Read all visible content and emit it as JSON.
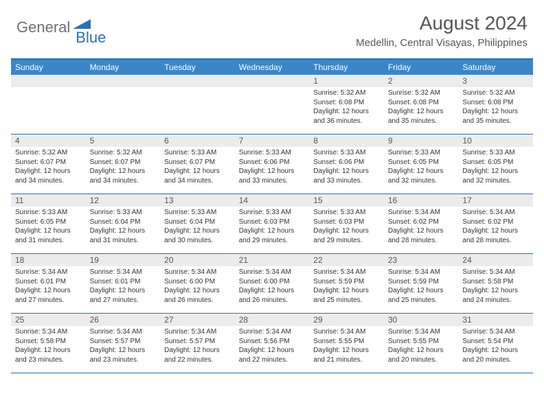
{
  "logo": {
    "text1": "General",
    "text2": "Blue"
  },
  "title": "August 2024",
  "location": "Medellin, Central Visayas, Philippines",
  "colors": {
    "header_bar": "#3b86c8",
    "border": "#2b6fb5",
    "daynum_bg": "#ececec",
    "text_gray": "#555555"
  },
  "weekdays": [
    "Sunday",
    "Monday",
    "Tuesday",
    "Wednesday",
    "Thursday",
    "Friday",
    "Saturday"
  ],
  "weeks": [
    [
      null,
      null,
      null,
      null,
      {
        "n": "1",
        "sr": "5:32 AM",
        "ss": "6:08 PM",
        "dl": "12 hours and 36 minutes."
      },
      {
        "n": "2",
        "sr": "5:32 AM",
        "ss": "6:08 PM",
        "dl": "12 hours and 35 minutes."
      },
      {
        "n": "3",
        "sr": "5:32 AM",
        "ss": "6:08 PM",
        "dl": "12 hours and 35 minutes."
      }
    ],
    [
      {
        "n": "4",
        "sr": "5:32 AM",
        "ss": "6:07 PM",
        "dl": "12 hours and 34 minutes."
      },
      {
        "n": "5",
        "sr": "5:32 AM",
        "ss": "6:07 PM",
        "dl": "12 hours and 34 minutes."
      },
      {
        "n": "6",
        "sr": "5:33 AM",
        "ss": "6:07 PM",
        "dl": "12 hours and 34 minutes."
      },
      {
        "n": "7",
        "sr": "5:33 AM",
        "ss": "6:06 PM",
        "dl": "12 hours and 33 minutes."
      },
      {
        "n": "8",
        "sr": "5:33 AM",
        "ss": "6:06 PM",
        "dl": "12 hours and 33 minutes."
      },
      {
        "n": "9",
        "sr": "5:33 AM",
        "ss": "6:05 PM",
        "dl": "12 hours and 32 minutes."
      },
      {
        "n": "10",
        "sr": "5:33 AM",
        "ss": "6:05 PM",
        "dl": "12 hours and 32 minutes."
      }
    ],
    [
      {
        "n": "11",
        "sr": "5:33 AM",
        "ss": "6:05 PM",
        "dl": "12 hours and 31 minutes."
      },
      {
        "n": "12",
        "sr": "5:33 AM",
        "ss": "6:04 PM",
        "dl": "12 hours and 31 minutes."
      },
      {
        "n": "13",
        "sr": "5:33 AM",
        "ss": "6:04 PM",
        "dl": "12 hours and 30 minutes."
      },
      {
        "n": "14",
        "sr": "5:33 AM",
        "ss": "6:03 PM",
        "dl": "12 hours and 29 minutes."
      },
      {
        "n": "15",
        "sr": "5:33 AM",
        "ss": "6:03 PM",
        "dl": "12 hours and 29 minutes."
      },
      {
        "n": "16",
        "sr": "5:34 AM",
        "ss": "6:02 PM",
        "dl": "12 hours and 28 minutes."
      },
      {
        "n": "17",
        "sr": "5:34 AM",
        "ss": "6:02 PM",
        "dl": "12 hours and 28 minutes."
      }
    ],
    [
      {
        "n": "18",
        "sr": "5:34 AM",
        "ss": "6:01 PM",
        "dl": "12 hours and 27 minutes."
      },
      {
        "n": "19",
        "sr": "5:34 AM",
        "ss": "6:01 PM",
        "dl": "12 hours and 27 minutes."
      },
      {
        "n": "20",
        "sr": "5:34 AM",
        "ss": "6:00 PM",
        "dl": "12 hours and 26 minutes."
      },
      {
        "n": "21",
        "sr": "5:34 AM",
        "ss": "6:00 PM",
        "dl": "12 hours and 26 minutes."
      },
      {
        "n": "22",
        "sr": "5:34 AM",
        "ss": "5:59 PM",
        "dl": "12 hours and 25 minutes."
      },
      {
        "n": "23",
        "sr": "5:34 AM",
        "ss": "5:59 PM",
        "dl": "12 hours and 25 minutes."
      },
      {
        "n": "24",
        "sr": "5:34 AM",
        "ss": "5:58 PM",
        "dl": "12 hours and 24 minutes."
      }
    ],
    [
      {
        "n": "25",
        "sr": "5:34 AM",
        "ss": "5:58 PM",
        "dl": "12 hours and 23 minutes."
      },
      {
        "n": "26",
        "sr": "5:34 AM",
        "ss": "5:57 PM",
        "dl": "12 hours and 23 minutes."
      },
      {
        "n": "27",
        "sr": "5:34 AM",
        "ss": "5:57 PM",
        "dl": "12 hours and 22 minutes."
      },
      {
        "n": "28",
        "sr": "5:34 AM",
        "ss": "5:56 PM",
        "dl": "12 hours and 22 minutes."
      },
      {
        "n": "29",
        "sr": "5:34 AM",
        "ss": "5:55 PM",
        "dl": "12 hours and 21 minutes."
      },
      {
        "n": "30",
        "sr": "5:34 AM",
        "ss": "5:55 PM",
        "dl": "12 hours and 20 minutes."
      },
      {
        "n": "31",
        "sr": "5:34 AM",
        "ss": "5:54 PM",
        "dl": "12 hours and 20 minutes."
      }
    ]
  ],
  "labels": {
    "sunrise": "Sunrise:",
    "sunset": "Sunset:",
    "daylight": "Daylight:"
  }
}
